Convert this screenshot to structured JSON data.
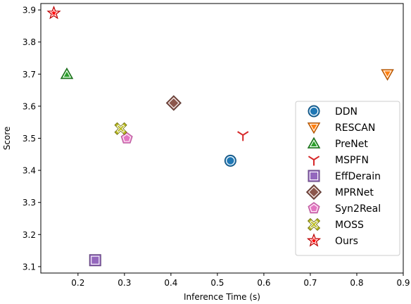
{
  "chart_data": {
    "type": "scatter",
    "title": "",
    "xlabel": "Inference Time (s)",
    "ylabel": "Score",
    "xlim": [
      0.12,
      0.9
    ],
    "ylim": [
      3.08,
      3.92
    ],
    "xticks": [
      "0.2",
      "0.3",
      "0.4",
      "0.5",
      "0.6",
      "0.7",
      "0.8",
      "0.9"
    ],
    "yticks": [
      "3.1",
      "3.2",
      "3.3",
      "3.4",
      "3.5",
      "3.6",
      "3.7",
      "3.8",
      "3.9"
    ],
    "grid": false,
    "legend_position": "lower-right",
    "series": [
      {
        "name": "DDN",
        "x": 0.528,
        "y": 3.43,
        "marker": "circle",
        "color": "#1f77b4"
      },
      {
        "name": "RESCAN",
        "x": 0.866,
        "y": 3.7,
        "marker": "triangle-down",
        "color": "#ff7f0e"
      },
      {
        "name": "PreNet",
        "x": 0.176,
        "y": 3.7,
        "marker": "triangle-up",
        "color": "#2ca02c"
      },
      {
        "name": "MSPFN",
        "x": 0.555,
        "y": 3.51,
        "marker": "tri-down",
        "color": "#d62728"
      },
      {
        "name": "EffDerain",
        "x": 0.237,
        "y": 3.12,
        "marker": "square",
        "color": "#9467bd"
      },
      {
        "name": "MPRNet",
        "x": 0.406,
        "y": 3.61,
        "marker": "diamond",
        "color": "#8c564b"
      },
      {
        "name": "Syn2Real",
        "x": 0.305,
        "y": 3.5,
        "marker": "pentagon",
        "color": "#e377c2"
      },
      {
        "name": "MOSS",
        "x": 0.292,
        "y": 3.53,
        "marker": "x-filled",
        "color": "#bcbd22"
      },
      {
        "name": "Ours",
        "x": 0.148,
        "y": 3.89,
        "marker": "star",
        "color": "#ff0000"
      }
    ]
  }
}
